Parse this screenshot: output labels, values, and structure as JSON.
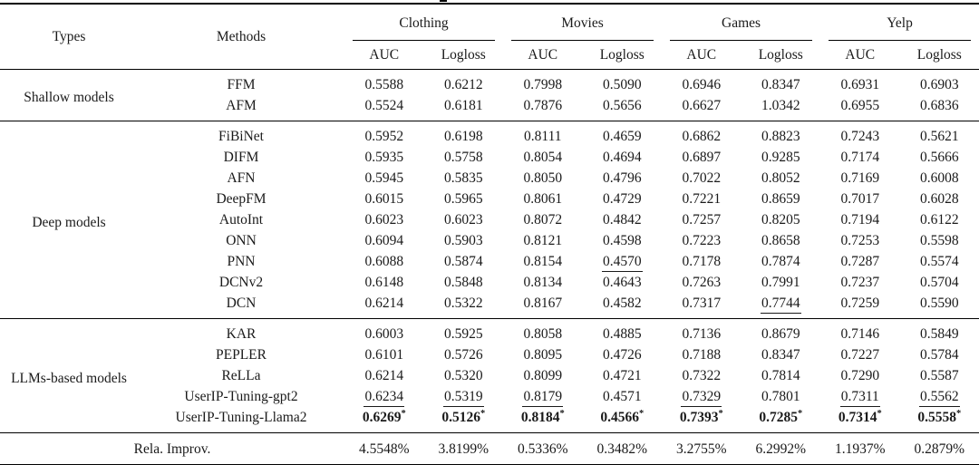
{
  "page": {
    "background": "#ffffff",
    "text_color": "#1a1a1a",
    "rule_color": "#000000"
  },
  "table": {
    "header": {
      "types": "Types",
      "methods": "Methods",
      "metrics": [
        "AUC",
        "Logloss"
      ]
    },
    "groups": [
      "Clothing",
      "Movies",
      "Games",
      "Yelp"
    ],
    "sections": [
      {
        "type": "Shallow models",
        "rows": [
          {
            "method": "FFM",
            "values": [
              "0.5588",
              "0.6212",
              "0.7998",
              "0.5090",
              "0.6946",
              "0.8347",
              "0.6931",
              "0.6903"
            ]
          },
          {
            "method": "AFM",
            "values": [
              "0.5524",
              "0.6181",
              "0.7876",
              "0.5656",
              "0.6627",
              "1.0342",
              "0.6955",
              "0.6836"
            ]
          }
        ]
      },
      {
        "type": "Deep models",
        "rows": [
          {
            "method": "FiBiNet",
            "values": [
              "0.5952",
              "0.6198",
              "0.8111",
              "0.4659",
              "0.6862",
              "0.8823",
              "0.7243",
              "0.5621"
            ]
          },
          {
            "method": "DIFM",
            "values": [
              "0.5935",
              "0.5758",
              "0.8054",
              "0.4694",
              "0.6897",
              "0.9285",
              "0.7174",
              "0.5666"
            ]
          },
          {
            "method": "AFN",
            "values": [
              "0.5945",
              "0.5835",
              "0.8050",
              "0.4796",
              "0.7022",
              "0.8052",
              "0.7169",
              "0.6008"
            ]
          },
          {
            "method": "DeepFM",
            "values": [
              "0.6015",
              "0.5965",
              "0.8061",
              "0.4729",
              "0.7221",
              "0.8659",
              "0.7017",
              "0.6028"
            ]
          },
          {
            "method": "AutoInt",
            "values": [
              "0.6023",
              "0.6023",
              "0.8072",
              "0.4842",
              "0.7257",
              "0.8205",
              "0.7194",
              "0.6122"
            ]
          },
          {
            "method": "ONN",
            "values": [
              "0.6094",
              "0.5903",
              "0.8121",
              "0.4598",
              "0.7223",
              "0.8658",
              "0.7253",
              "0.5598"
            ]
          },
          {
            "method": "PNN",
            "values": [
              "0.6088",
              "0.5874",
              "0.8154",
              {
                "v": "0.4570",
                "style": "underline"
              },
              "0.7178",
              "0.7874",
              "0.7287",
              "0.5574"
            ]
          },
          {
            "method": "DCNv2",
            "values": [
              "0.6148",
              "0.5848",
              "0.8134",
              "0.4643",
              "0.7263",
              "0.7991",
              "0.7237",
              "0.5704"
            ]
          },
          {
            "method": "DCN",
            "values": [
              "0.6214",
              "0.5322",
              "0.8167",
              "0.4582",
              "0.7317",
              {
                "v": "0.7744",
                "style": "underline"
              },
              "0.7259",
              "0.5590"
            ]
          }
        ]
      },
      {
        "type": "LLMs-based models",
        "rows": [
          {
            "method": "KAR",
            "values": [
              "0.6003",
              "0.5925",
              "0.8058",
              "0.4885",
              "0.7136",
              "0.8679",
              "0.7146",
              "0.5849"
            ]
          },
          {
            "method": "PEPLER",
            "values": [
              "0.6101",
              "0.5726",
              "0.8095",
              "0.4726",
              "0.7188",
              "0.8347",
              "0.7227",
              "0.5784"
            ]
          },
          {
            "method": "ReLLa",
            "values": [
              "0.6214",
              "0.5320",
              "0.8099",
              "0.4721",
              "0.7322",
              "0.7814",
              "0.7290",
              "0.5587"
            ]
          },
          {
            "method": "UserIP-Tuning-gpt2",
            "values": [
              {
                "v": "0.6234",
                "style": "underline"
              },
              {
                "v": "0.5319",
                "style": "underline"
              },
              {
                "v": "0.8179",
                "style": "underline"
              },
              "0.4571",
              {
                "v": "0.7329",
                "style": "underline"
              },
              "0.7801",
              {
                "v": "0.7311",
                "style": "underline"
              },
              {
                "v": "0.5562",
                "style": "underline"
              }
            ]
          },
          {
            "method": "UserIP-Tuning-Llama2",
            "values": [
              {
                "v": "0.6269",
                "style": "bold",
                "sup": "*"
              },
              {
                "v": "0.5126",
                "style": "bold",
                "sup": "*"
              },
              {
                "v": "0.8184",
                "style": "bold",
                "sup": "*"
              },
              {
                "v": "0.4566",
                "style": "bold",
                "sup": "*"
              },
              {
                "v": "0.7393",
                "style": "bold",
                "sup": "*"
              },
              {
                "v": "0.7285",
                "style": "bold",
                "sup": "*"
              },
              {
                "v": "0.7314",
                "style": "bold",
                "sup": "*"
              },
              {
                "v": "0.5558",
                "style": "bold",
                "sup": "*"
              }
            ]
          }
        ]
      }
    ],
    "footer": {
      "label": "Rela. Improv.",
      "values": [
        "4.5548%",
        "3.8199%",
        "0.5336%",
        "0.3482%",
        "3.2755%",
        "6.2992%",
        "1.1937%",
        "0.2879%"
      ]
    }
  }
}
